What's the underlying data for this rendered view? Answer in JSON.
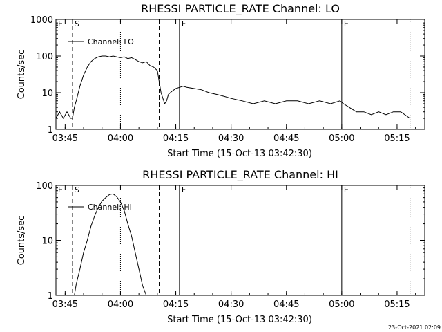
{
  "footer_timestamp": "23-Oct-2021 02:09",
  "chart_data": [
    {
      "type": "line",
      "title": "RHESSI PARTICLE_RATE Channel: LO",
      "xlabel": "Start Time (15-Oct-13 03:42:30)",
      "ylabel": "Counts/sec",
      "y_scale": "log",
      "xlim": [
        "03:42:30",
        "05:22:30"
      ],
      "ylim": [
        1,
        1000
      ],
      "x_ticks": [
        "03:45",
        "04:00",
        "04:15",
        "04:30",
        "04:45",
        "05:00",
        "05:15"
      ],
      "y_ticks": [
        "1",
        "10",
        "100",
        "1000"
      ],
      "legend": "Channel: LO",
      "legend_position": "top-left",
      "markers": [
        {
          "label": "E",
          "time": "03:42:30",
          "style": "solid"
        },
        {
          "label": "S",
          "time": "03:47:00",
          "style": "dashed"
        },
        {
          "label": "",
          "time": "04:00:00",
          "style": "dotted"
        },
        {
          "label": "",
          "time": "04:10:30",
          "style": "dashed"
        },
        {
          "label": "F",
          "time": "04:16:00",
          "style": "solid"
        },
        {
          "label": "E",
          "time": "05:00:00",
          "style": "solid"
        },
        {
          "label": "",
          "time": "05:18:30",
          "style": "dotted"
        }
      ],
      "series": [
        {
          "x": [
            "03:42:30",
            "03:43:30",
            "03:44:30",
            "03:45:30",
            "03:46:30",
            "03:47:00",
            "03:47:30",
            "03:48:00",
            "03:49:00",
            "03:50:00",
            "03:51:00",
            "03:52:00",
            "03:53:00",
            "03:54:00",
            "03:55:00",
            "03:56:00",
            "03:57:00",
            "03:58:00",
            "03:59:00",
            "04:00:00",
            "04:01:00",
            "04:02:00",
            "04:03:00",
            "04:04:00",
            "04:05:00",
            "04:06:00",
            "04:07:00",
            "04:08:00",
            "04:09:00",
            "04:10:00",
            "04:10:30",
            "04:11:00",
            "04:11:30",
            "04:12:00",
            "04:12:30",
            "04:13:00",
            "04:14:00",
            "04:15:00",
            "04:16:00",
            "04:17:00",
            "04:18:00",
            "04:20:00",
            "04:22:00",
            "04:24:00",
            "04:26:00",
            "04:28:00",
            "04:30:00",
            "04:33:00",
            "04:36:00",
            "04:39:00",
            "04:42:00",
            "04:45:00",
            "04:48:00",
            "04:51:00",
            "04:54:00",
            "04:57:00",
            "04:59:30",
            "05:00:30",
            "05:02:00",
            "05:04:00",
            "05:06:00",
            "05:08:00",
            "05:10:00",
            "05:12:00",
            "05:14:00",
            "05:16:00",
            "05:18:30"
          ],
          "y": [
            2,
            3,
            2,
            3,
            2,
            2,
            4,
            6,
            15,
            30,
            50,
            70,
            85,
            95,
            100,
            100,
            95,
            100,
            95,
            90,
            95,
            85,
            90,
            80,
            70,
            65,
            70,
            55,
            50,
            40,
            20,
            10,
            7,
            5,
            6,
            9,
            11,
            13,
            14,
            15,
            14,
            13,
            12,
            10,
            9,
            8,
            7,
            6,
            5,
            6,
            5,
            6,
            6,
            5,
            6,
            5,
            6,
            5,
            4,
            3,
            3,
            2.5,
            3,
            2.5,
            3,
            3,
            2
          ]
        }
      ]
    },
    {
      "type": "line",
      "title": "RHESSI PARTICLE_RATE Channel: HI",
      "xlabel": "Start Time (15-Oct-13 03:42:30)",
      "ylabel": "Counts/sec",
      "y_scale": "log",
      "xlim": [
        "03:42:30",
        "05:22:30"
      ],
      "ylim": [
        1,
        100
      ],
      "x_ticks": [
        "03:45",
        "04:00",
        "04:15",
        "04:30",
        "04:45",
        "05:00",
        "05:15"
      ],
      "y_ticks": [
        "1",
        "10",
        "100"
      ],
      "legend": "Channel: HI",
      "legend_position": "top-left",
      "markers": [
        {
          "label": "E",
          "time": "03:42:30",
          "style": "solid"
        },
        {
          "label": "S",
          "time": "03:47:00",
          "style": "dashed"
        },
        {
          "label": "",
          "time": "04:00:00",
          "style": "dotted"
        },
        {
          "label": "",
          "time": "04:10:30",
          "style": "dashed"
        },
        {
          "label": "F",
          "time": "04:16:00",
          "style": "solid"
        },
        {
          "label": "E",
          "time": "05:00:00",
          "style": "solid"
        },
        {
          "label": "",
          "time": "05:18:30",
          "style": "dotted"
        }
      ],
      "series": [
        {
          "x": [
            "03:47:30",
            "03:48:00",
            "03:49:00",
            "03:50:00",
            "03:51:00",
            "03:52:00",
            "03:53:00",
            "03:54:00",
            "03:55:00",
            "03:56:00",
            "03:57:00",
            "03:58:00",
            "03:59:00",
            "04:00:00",
            "04:01:00",
            "04:02:00",
            "04:03:00",
            "04:04:00",
            "04:05:00",
            "04:06:00",
            "04:07:00"
          ],
          "y": [
            1,
            1.6,
            3,
            6,
            10,
            18,
            28,
            40,
            52,
            60,
            68,
            70,
            62,
            50,
            35,
            20,
            12,
            6,
            3,
            1.5,
            1
          ]
        }
      ]
    }
  ]
}
